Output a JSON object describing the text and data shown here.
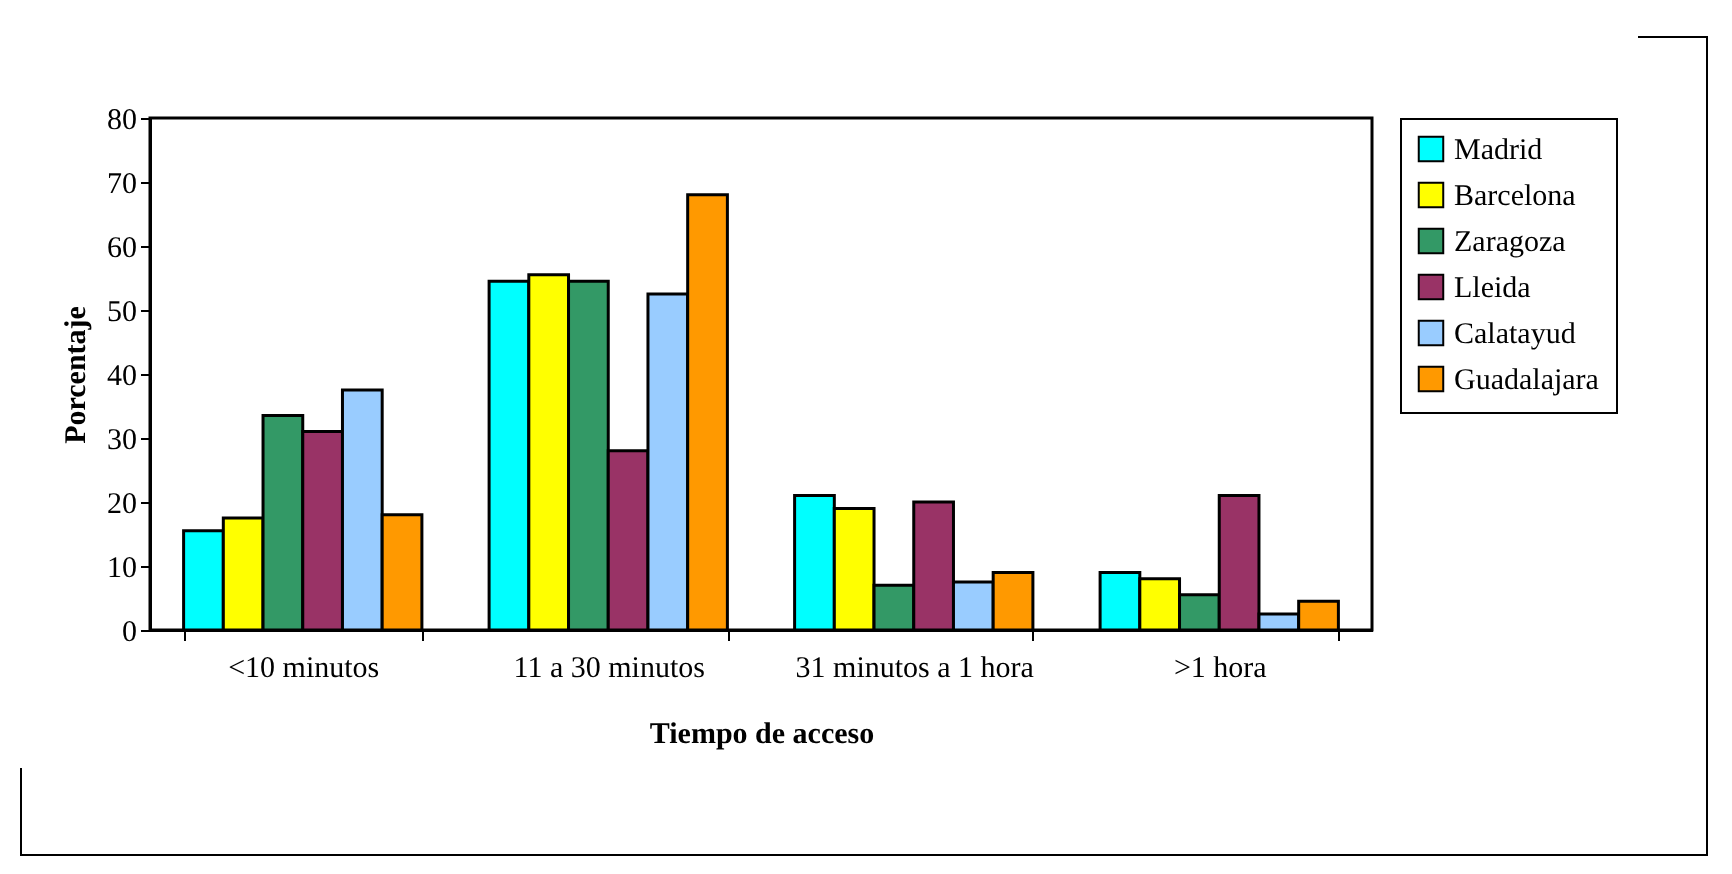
{
  "chart_data": {
    "type": "bar",
    "xlabel": "Tiempo de acceso",
    "ylabel": "Porcentaje",
    "categories": [
      "<10 minutos",
      "11 a 30 minutos",
      "31 minutos a 1 hora",
      ">1 hora"
    ],
    "series": [
      {
        "name": "Madrid",
        "color": "#00ffff",
        "values": [
          15.5,
          54.5,
          21,
          9
        ]
      },
      {
        "name": "Barcelona",
        "color": "#ffff00",
        "values": [
          17.5,
          55.5,
          19,
          8
        ]
      },
      {
        "name": "Zaragoza",
        "color": "#339966",
        "values": [
          33.5,
          54.5,
          7,
          5.5
        ]
      },
      {
        "name": "Lleida",
        "color": "#993366",
        "values": [
          31,
          28,
          20,
          21
        ]
      },
      {
        "name": "Calatayud",
        "color": "#99ccff",
        "values": [
          37.5,
          52.5,
          7.5,
          2.5
        ]
      },
      {
        "name": "Guadalajara",
        "color": "#ff9900",
        "values": [
          18,
          68,
          9,
          4.5
        ]
      }
    ],
    "ylim": [
      0,
      80
    ],
    "yticks": [
      0,
      10,
      20,
      30,
      40,
      50,
      60,
      70,
      80
    ],
    "grid": false,
    "legend": "right"
  }
}
